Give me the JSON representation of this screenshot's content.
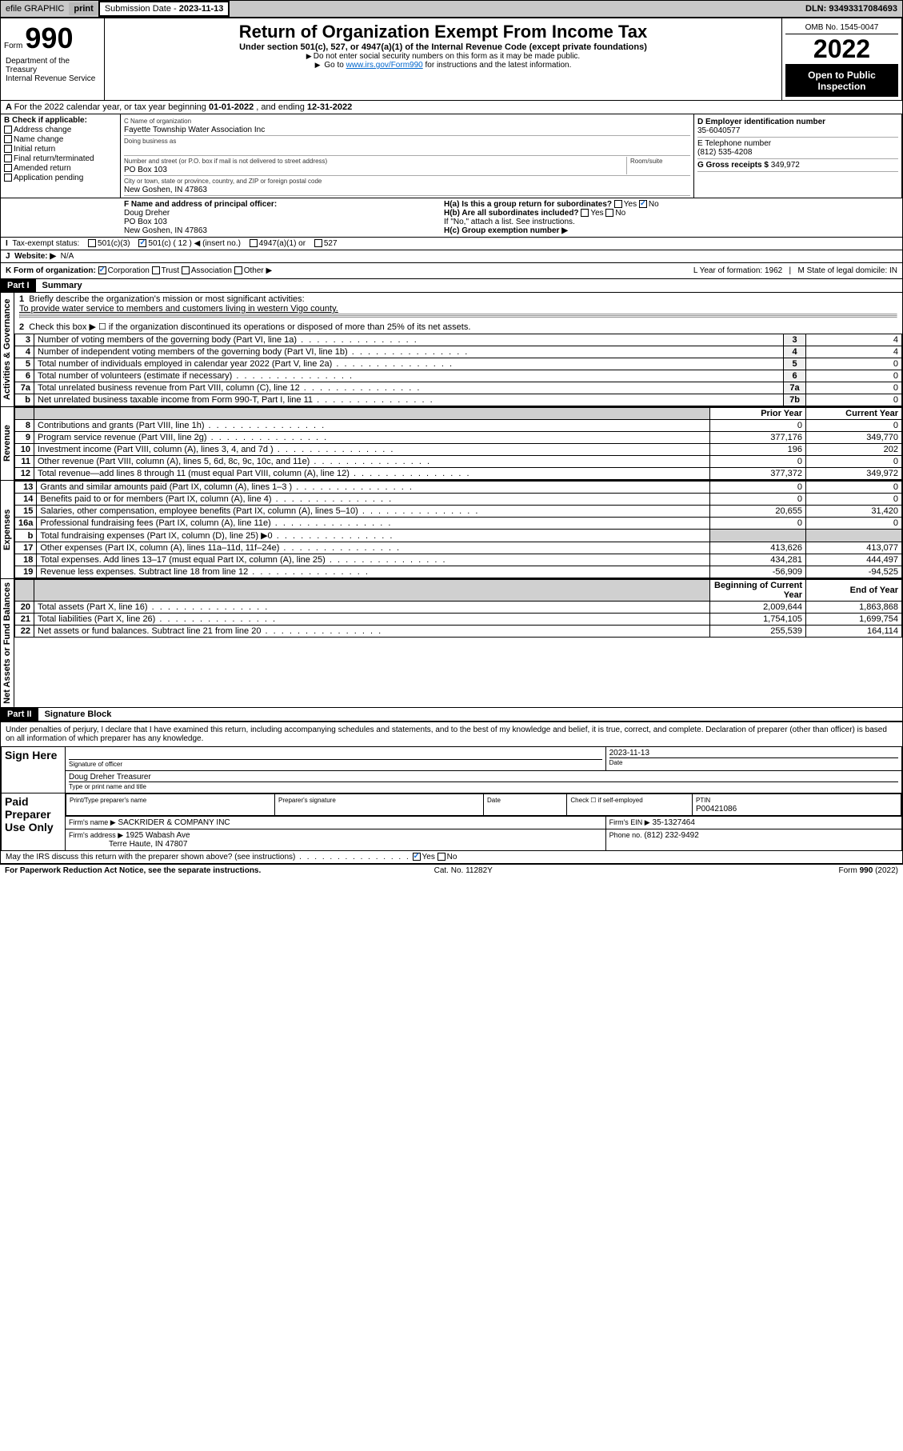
{
  "topbar": {
    "efile": "efile GRAPHIC",
    "print": "print",
    "subdate_label": "Submission Date - ",
    "subdate": "2023-11-13",
    "dln": "DLN: 93493317084693"
  },
  "header": {
    "form_label": "Form",
    "form_num": "990",
    "dept": "Department of the Treasury\nInternal Revenue Service",
    "title": "Return of Organization Exempt From Income Tax",
    "subtitle": "Under section 501(c), 527, or 4947(a)(1) of the Internal Revenue Code (except private foundations)",
    "note1": "Do not enter social security numbers on this form as it may be made public.",
    "note2_pre": "Go to ",
    "note2_link": "www.irs.gov/Form990",
    "note2_post": " for instructions and the latest information.",
    "omb": "OMB No. 1545-0047",
    "year": "2022",
    "open": "Open to Public Inspection"
  },
  "line_a": {
    "text": "For the 2022 calendar year, or tax year beginning ",
    "begin": "01-01-2022",
    "mid": " , and ending ",
    "end": "12-31-2022"
  },
  "b": {
    "label": "B Check if applicable:",
    "opts": [
      "Address change",
      "Name change",
      "Initial return",
      "Final return/terminated",
      "Amended return",
      "Application pending"
    ]
  },
  "c": {
    "name_lbl": "C Name of organization",
    "name": "Fayette Township Water Association Inc",
    "dba_lbl": "Doing business as",
    "dba": "",
    "addr_lbl": "Number and street (or P.O. box if mail is not delivered to street address)",
    "room_lbl": "Room/suite",
    "addr": "PO Box 103",
    "city_lbl": "City or town, state or province, country, and ZIP or foreign postal code",
    "city": "New Goshen, IN  47863"
  },
  "d": {
    "ein_lbl": "D Employer identification number",
    "ein": "35-6040577",
    "phone_lbl": "E Telephone number",
    "phone": "(812) 535-4208",
    "gross_lbl": "G Gross receipts $ ",
    "gross": "349,972"
  },
  "f": {
    "lbl": "F Name and address of principal officer:",
    "name": "Doug Dreher",
    "addr1": "PO Box 103",
    "addr2": "New Goshen, IN  47863"
  },
  "h": {
    "a": "H(a)  Is this a group return for subordinates?",
    "a_no": "No",
    "b": "H(b)  Are all subordinates included?",
    "b_note": "If \"No,\" attach a list. See instructions.",
    "c": "H(c)  Group exemption number ▶"
  },
  "i": {
    "lbl": "Tax-exempt status:",
    "c3": "501(c)(3)",
    "c": "501(c) ( 12 ) ◀ (insert no.)",
    "a1": "4947(a)(1) or",
    "s527": "527"
  },
  "j": {
    "lbl": "Website: ▶",
    "val": "N/A"
  },
  "k": {
    "lbl": "K Form of organization:",
    "corp": "Corporation",
    "trust": "Trust",
    "assoc": "Association",
    "other": "Other ▶",
    "l": "L Year of formation: 1962",
    "m": "M State of legal domicile: IN"
  },
  "part1": {
    "hdr": "Part I",
    "title": "Summary",
    "l1": "Briefly describe the organization's mission or most significant activities:",
    "mission": "To provide water service to members and customers living in western Vigo county.",
    "l2": "Check this box ▶ ☐  if the organization discontinued its operations or disposed of more than 25% of its net assets.",
    "side_ag": "Activities & Governance",
    "side_rev": "Revenue",
    "side_exp": "Expenses",
    "side_na": "Net Assets or Fund Balances",
    "prior": "Prior Year",
    "current": "Current Year",
    "begin": "Beginning of Current Year",
    "end": "End of Year",
    "rows_ag": [
      {
        "n": "3",
        "d": "Number of voting members of the governing body (Part VI, line 1a)",
        "box": "3",
        "v": "4"
      },
      {
        "n": "4",
        "d": "Number of independent voting members of the governing body (Part VI, line 1b)",
        "box": "4",
        "v": "4"
      },
      {
        "n": "5",
        "d": "Total number of individuals employed in calendar year 2022 (Part V, line 2a)",
        "box": "5",
        "v": "0"
      },
      {
        "n": "6",
        "d": "Total number of volunteers (estimate if necessary)",
        "box": "6",
        "v": "0"
      },
      {
        "n": "7a",
        "d": "Total unrelated business revenue from Part VIII, column (C), line 12",
        "box": "7a",
        "v": "0"
      },
      {
        "n": "b",
        "d": "Net unrelated business taxable income from Form 990-T, Part I, line 11",
        "box": "7b",
        "v": "0"
      }
    ],
    "rows_rev": [
      {
        "n": "8",
        "d": "Contributions and grants (Part VIII, line 1h)",
        "p": "0",
        "c": "0"
      },
      {
        "n": "9",
        "d": "Program service revenue (Part VIII, line 2g)",
        "p": "377,176",
        "c": "349,770"
      },
      {
        "n": "10",
        "d": "Investment income (Part VIII, column (A), lines 3, 4, and 7d )",
        "p": "196",
        "c": "202"
      },
      {
        "n": "11",
        "d": "Other revenue (Part VIII, column (A), lines 5, 6d, 8c, 9c, 10c, and 11e)",
        "p": "0",
        "c": "0"
      },
      {
        "n": "12",
        "d": "Total revenue—add lines 8 through 11 (must equal Part VIII, column (A), line 12)",
        "p": "377,372",
        "c": "349,972"
      }
    ],
    "rows_exp": [
      {
        "n": "13",
        "d": "Grants and similar amounts paid (Part IX, column (A), lines 1–3 )",
        "p": "0",
        "c": "0"
      },
      {
        "n": "14",
        "d": "Benefits paid to or for members (Part IX, column (A), line 4)",
        "p": "0",
        "c": "0"
      },
      {
        "n": "15",
        "d": "Salaries, other compensation, employee benefits (Part IX, column (A), lines 5–10)",
        "p": "20,655",
        "c": "31,420"
      },
      {
        "n": "16a",
        "d": "Professional fundraising fees (Part IX, column (A), line 11e)",
        "p": "0",
        "c": "0"
      },
      {
        "n": "b",
        "d": "Total fundraising expenses (Part IX, column (D), line 25) ▶0",
        "p": "",
        "c": ""
      },
      {
        "n": "17",
        "d": "Other expenses (Part IX, column (A), lines 11a–11d, 11f–24e)",
        "p": "413,626",
        "c": "413,077"
      },
      {
        "n": "18",
        "d": "Total expenses. Add lines 13–17 (must equal Part IX, column (A), line 25)",
        "p": "434,281",
        "c": "444,497"
      },
      {
        "n": "19",
        "d": "Revenue less expenses. Subtract line 18 from line 12",
        "p": "-56,909",
        "c": "-94,525"
      }
    ],
    "rows_na": [
      {
        "n": "20",
        "d": "Total assets (Part X, line 16)",
        "p": "2,009,644",
        "c": "1,863,868"
      },
      {
        "n": "21",
        "d": "Total liabilities (Part X, line 26)",
        "p": "1,754,105",
        "c": "1,699,754"
      },
      {
        "n": "22",
        "d": "Net assets or fund balances. Subtract line 21 from line 20",
        "p": "255,539",
        "c": "164,114"
      }
    ]
  },
  "part2": {
    "hdr": "Part II",
    "title": "Signature Block",
    "decl": "Under penalties of perjury, I declare that I have examined this return, including accompanying schedules and statements, and to the best of my knowledge and belief, it is true, correct, and complete. Declaration of preparer (other than officer) is based on all information of which preparer has any knowledge.",
    "sign_here": "Sign Here",
    "sig_officer": "Signature of officer",
    "sig_date": "2023-11-13",
    "date_lbl": "Date",
    "officer_name": "Doug Dreher  Treasurer",
    "officer_lbl": "Type or print name and title",
    "paid": "Paid Preparer Use Only",
    "prep_name_lbl": "Print/Type preparer's name",
    "prep_sig_lbl": "Preparer's signature",
    "prep_date_lbl": "Date",
    "check_if": "Check ☐ if self-employed",
    "ptin_lbl": "PTIN",
    "ptin": "P00421086",
    "firm_name_lbl": "Firm's name      ▶",
    "firm_name": "SACKRIDER & COMPANY INC",
    "firm_ein_lbl": "Firm's EIN ▶",
    "firm_ein": "35-1327464",
    "firm_addr_lbl": "Firm's address ▶",
    "firm_addr1": "1925 Wabash Ave",
    "firm_addr2": "Terre Haute, IN  47807",
    "firm_phone_lbl": "Phone no.",
    "firm_phone": "(812) 232-9492",
    "may_discuss": "May the IRS discuss this return with the preparer shown above? (see instructions)",
    "yes": "Yes",
    "no": "No"
  },
  "footer": {
    "pra": "For Paperwork Reduction Act Notice, see the separate instructions.",
    "cat": "Cat. No. 11282Y",
    "form": "Form 990 (2022)"
  }
}
